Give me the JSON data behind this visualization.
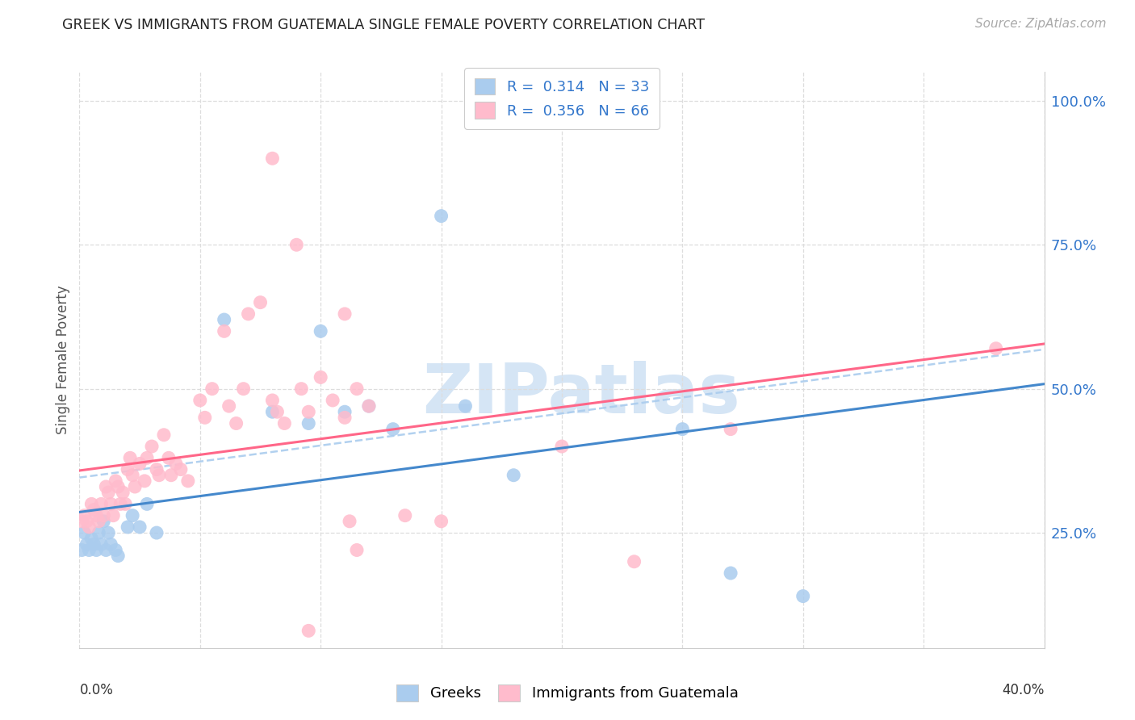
{
  "title": "GREEK VS IMMIGRANTS FROM GUATEMALA SINGLE FEMALE POVERTY CORRELATION CHART",
  "source": "Source: ZipAtlas.com",
  "ylabel": "Single Female Poverty",
  "greek_R": 0.314,
  "greek_N": 33,
  "guatemala_R": 0.356,
  "guatemala_N": 66,
  "greek_color": "#aaccee",
  "guatemala_color": "#ffbbcc",
  "greek_line_color": "#4488cc",
  "guatemala_line_color": "#ff6688",
  "dashed_line_color": "#aaccee",
  "watermark_text": "ZIPatlas",
  "watermark_color": "#d5e5f5",
  "legend_text_color": "#3377cc",
  "right_axis_color": "#3377cc",
  "xlim": [
    0.0,
    0.4
  ],
  "ylim": [
    0.05,
    1.05
  ],
  "right_ytick_vals": [
    0.25,
    0.5,
    0.75,
    1.0
  ],
  "right_ytick_labels": [
    "25.0%",
    "50.0%",
    "75.0%",
    "100.0%"
  ],
  "x_tick_positions": [
    0.0,
    0.05,
    0.1,
    0.15,
    0.2,
    0.25,
    0.3,
    0.35,
    0.4
  ],
  "greek_points": [
    [
      0.001,
      0.22
    ],
    [
      0.002,
      0.25
    ],
    [
      0.003,
      0.23
    ],
    [
      0.004,
      0.22
    ],
    [
      0.005,
      0.24
    ],
    [
      0.006,
      0.23
    ],
    [
      0.007,
      0.22
    ],
    [
      0.008,
      0.25
    ],
    [
      0.009,
      0.23
    ],
    [
      0.01,
      0.27
    ],
    [
      0.011,
      0.22
    ],
    [
      0.012,
      0.25
    ],
    [
      0.013,
      0.23
    ],
    [
      0.015,
      0.22
    ],
    [
      0.016,
      0.21
    ],
    [
      0.02,
      0.26
    ],
    [
      0.022,
      0.28
    ],
    [
      0.025,
      0.26
    ],
    [
      0.028,
      0.3
    ],
    [
      0.032,
      0.25
    ],
    [
      0.06,
      0.62
    ],
    [
      0.08,
      0.46
    ],
    [
      0.095,
      0.44
    ],
    [
      0.1,
      0.6
    ],
    [
      0.11,
      0.46
    ],
    [
      0.12,
      0.47
    ],
    [
      0.13,
      0.43
    ],
    [
      0.15,
      0.8
    ],
    [
      0.16,
      0.47
    ],
    [
      0.18,
      0.35
    ],
    [
      0.25,
      0.43
    ],
    [
      0.27,
      0.18
    ],
    [
      0.3,
      0.14
    ]
  ],
  "guatemala_points": [
    [
      0.001,
      0.27
    ],
    [
      0.002,
      0.28
    ],
    [
      0.003,
      0.27
    ],
    [
      0.004,
      0.26
    ],
    [
      0.005,
      0.3
    ],
    [
      0.006,
      0.29
    ],
    [
      0.007,
      0.28
    ],
    [
      0.008,
      0.27
    ],
    [
      0.009,
      0.3
    ],
    [
      0.01,
      0.28
    ],
    [
      0.011,
      0.33
    ],
    [
      0.012,
      0.32
    ],
    [
      0.013,
      0.3
    ],
    [
      0.014,
      0.28
    ],
    [
      0.015,
      0.34
    ],
    [
      0.016,
      0.33
    ],
    [
      0.017,
      0.3
    ],
    [
      0.018,
      0.32
    ],
    [
      0.019,
      0.3
    ],
    [
      0.02,
      0.36
    ],
    [
      0.021,
      0.38
    ],
    [
      0.022,
      0.35
    ],
    [
      0.023,
      0.33
    ],
    [
      0.025,
      0.37
    ],
    [
      0.027,
      0.34
    ],
    [
      0.028,
      0.38
    ],
    [
      0.03,
      0.4
    ],
    [
      0.032,
      0.36
    ],
    [
      0.033,
      0.35
    ],
    [
      0.035,
      0.42
    ],
    [
      0.037,
      0.38
    ],
    [
      0.038,
      0.35
    ],
    [
      0.04,
      0.37
    ],
    [
      0.042,
      0.36
    ],
    [
      0.045,
      0.34
    ],
    [
      0.05,
      0.48
    ],
    [
      0.052,
      0.45
    ],
    [
      0.055,
      0.5
    ],
    [
      0.06,
      0.6
    ],
    [
      0.062,
      0.47
    ],
    [
      0.065,
      0.44
    ],
    [
      0.068,
      0.5
    ],
    [
      0.07,
      0.63
    ],
    [
      0.075,
      0.65
    ],
    [
      0.08,
      0.48
    ],
    [
      0.082,
      0.46
    ],
    [
      0.085,
      0.44
    ],
    [
      0.09,
      0.75
    ],
    [
      0.092,
      0.5
    ],
    [
      0.095,
      0.46
    ],
    [
      0.1,
      0.52
    ],
    [
      0.105,
      0.48
    ],
    [
      0.11,
      0.45
    ],
    [
      0.112,
      0.27
    ],
    [
      0.115,
      0.22
    ],
    [
      0.08,
      0.9
    ],
    [
      0.11,
      0.63
    ],
    [
      0.115,
      0.5
    ],
    [
      0.12,
      0.47
    ],
    [
      0.135,
      0.28
    ],
    [
      0.15,
      0.27
    ],
    [
      0.2,
      0.4
    ],
    [
      0.23,
      0.2
    ],
    [
      0.27,
      0.43
    ],
    [
      0.38,
      0.57
    ],
    [
      0.095,
      0.08
    ]
  ]
}
